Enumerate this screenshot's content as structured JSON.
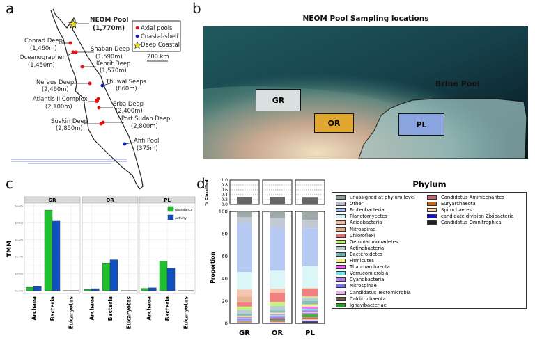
{
  "panel_labels": {
    "a": "a",
    "b": "b",
    "c": "c",
    "d": "d"
  },
  "map": {
    "legend": [
      {
        "label": "Axial pools",
        "color": "#e01010",
        "marker": "dot"
      },
      {
        "label": "Coastal-shelf",
        "color": "#1020c0",
        "marker": "dot"
      },
      {
        "label": "Deep Coastal",
        "color": "#f0e020",
        "marker": "star"
      }
    ],
    "scale_label": "200 km",
    "sites": [
      {
        "name": "NEOM Pool",
        "depth": "(1,770m)",
        "type": "Deep Coastal",
        "highlight": true
      },
      {
        "name": "Conrad Deep",
        "depth": "(1,460m)",
        "type": "Axial pools"
      },
      {
        "name": "Shaban Deep",
        "depth": "(1,590m)",
        "type": "Axial pools"
      },
      {
        "name": "Oceanographer",
        "depth": "(1,450m)",
        "type": "Axial pools"
      },
      {
        "name": "Kebrit Deep",
        "depth": "(1,570m)",
        "type": "Axial pools"
      },
      {
        "name": "Nereus Deep",
        "depth": "(2,460m)",
        "type": "Axial pools"
      },
      {
        "name": "Thuwal Seeps",
        "depth": "(860m)",
        "type": "Coastal-shelf"
      },
      {
        "name": "Atlantis II Complex",
        "depth": "(2,100m)",
        "type": "Axial pools"
      },
      {
        "name": "Erba Deep",
        "depth": "(2,400m)",
        "type": "Axial pools"
      },
      {
        "name": "Suakin Deep",
        "depth": "(2,850m)",
        "type": "Axial pools"
      },
      {
        "name": "Port Sudan Deep",
        "depth": "(2,800m)",
        "type": "Axial pools"
      },
      {
        "name": "Afifi Pool",
        "depth": "(375m)",
        "type": "Coastal-shelf"
      }
    ]
  },
  "photo": {
    "title": "NEOM Pool Sampling locations",
    "brine_label": "Brine Pool",
    "boxes": [
      {
        "label": "GR",
        "color": "#d8e0e0"
      },
      {
        "label": "OR",
        "color": "#e0a830"
      },
      {
        "label": "PL",
        "color": "#8aa4e0"
      }
    ]
  },
  "chart_data": [
    {
      "type": "bar",
      "panel": "c",
      "ylabel": "TMM",
      "facets": [
        "GR",
        "OR",
        "PL"
      ],
      "categories": [
        "Archaea",
        "Bacteria",
        "Eukaryotes"
      ],
      "yticks": [
        "0e+00",
        "1e+05",
        "2e+05",
        "3e+05",
        "4e+05",
        "5e+05"
      ],
      "ylim": [
        0,
        500000
      ],
      "grid": true,
      "legend_position": "top-right",
      "series": [
        {
          "name": "Abundance",
          "color": "#20c030",
          "values": {
            "GR": [
              20000,
              475000,
              1000
            ],
            "OR": [
              8000,
              163000,
              1000
            ],
            "PL": [
              13000,
              175000,
              1000
            ]
          }
        },
        {
          "name": "Activity",
          "color": "#1050c0",
          "values": {
            "GR": [
              25000,
              410000,
              1000
            ],
            "OR": [
              12000,
              182000,
              1000
            ],
            "PL": [
              17000,
              132000,
              1000
            ]
          }
        }
      ]
    },
    {
      "type": "bar",
      "panel": "d",
      "stacked": true,
      "ylabel": "Proportion",
      "top_ylabel": "% Classified",
      "top_yticks": [
        "0.0",
        "0.2",
        "0.4",
        "0.6",
        "0.8",
        "1.0"
      ],
      "yticks": [
        "0",
        "20",
        "40",
        "60",
        "80",
        "100"
      ],
      "ylim": [
        0,
        100
      ],
      "categories": [
        "GR",
        "OR",
        "PL"
      ],
      "classified": [
        0.3,
        0.3,
        0.28
      ],
      "legend_title": "Phylum",
      "series": [
        {
          "name": "unassigned at phylum level",
          "color": "#8e9a98",
          "values": [
            5.2,
            6,
            7.5
          ]
        },
        {
          "name": "Other",
          "color": "#b5bfcc",
          "values": [
            5.6,
            8,
            7.5
          ]
        },
        {
          "name": "Proteobacteria",
          "color": "#a8c0f0",
          "values": [
            43.3,
            39,
            34
          ]
        },
        {
          "name": "Planctomycetes",
          "color": "#d4f4f4",
          "values": [
            15.8,
            16,
            19.5
          ]
        },
        {
          "name": "Acidobacteria",
          "color": "#f7b8a0",
          "values": [
            6.2,
            3.5,
            0.5
          ]
        },
        {
          "name": "Nitrospirae",
          "color": "#e0a880",
          "values": [
            5.2,
            0.5,
            0.5
          ]
        },
        {
          "name": "Chloroflexi",
          "color": "#f06a6a",
          "values": [
            3.7,
            8,
            6.5
          ]
        },
        {
          "name": "Gemmatimonadetes",
          "color": "#c0f070",
          "values": [
            3.2,
            3.5,
            1
          ]
        },
        {
          "name": "Actinobacteria",
          "color": "#a8c8c8",
          "values": [
            3.5,
            4,
            3
          ]
        },
        {
          "name": "Bacteroidetes",
          "color": "#70b0b0",
          "values": [
            1.5,
            2,
            3
          ]
        },
        {
          "name": "Firmicutes",
          "color": "#f5f570",
          "values": [
            1,
            1,
            2
          ]
        },
        {
          "name": "Thaumarchaeota",
          "color": "#f060f0",
          "values": [
            1,
            1,
            2
          ]
        },
        {
          "name": "Verrucomicrobia",
          "color": "#60f0f0",
          "values": [
            0.8,
            1,
            1
          ]
        },
        {
          "name": "Cyanobacteria",
          "color": "#b080f0",
          "values": [
            0.6,
            0.8,
            1
          ]
        },
        {
          "name": "Nitrospinae",
          "color": "#7070f0",
          "values": [
            0.8,
            0.7,
            1
          ]
        },
        {
          "name": "Candidatus Tectomicrobia",
          "color": "#f0b0f0",
          "values": [
            0.5,
            0.8,
            1
          ]
        },
        {
          "name": "Calditrichaeota",
          "color": "#705a50",
          "values": [
            0.4,
            1.2,
            1
          ]
        },
        {
          "name": "Ignavibacteriae",
          "color": "#20a020",
          "values": [
            0.3,
            0.5,
            2.5
          ]
        },
        {
          "name": "Candidatus Aminicenantes",
          "color": "#c06868",
          "values": [
            0.3,
            0.8,
            1
          ]
        },
        {
          "name": "Euryarchaeota",
          "color": "#d06000",
          "values": [
            0.4,
            0.5,
            1
          ]
        },
        {
          "name": "Spirochaetes",
          "color": "#f5d8b8",
          "values": [
            0.2,
            0.5,
            1
          ]
        },
        {
          "name": "candidate division Zixibacteria",
          "color": "#1010e0",
          "values": [
            0.2,
            0.4,
            1
          ]
        },
        {
          "name": "Candidatus Omnitrophica",
          "color": "#202020",
          "values": [
            0.3,
            0.3,
            1.5
          ]
        }
      ]
    }
  ]
}
